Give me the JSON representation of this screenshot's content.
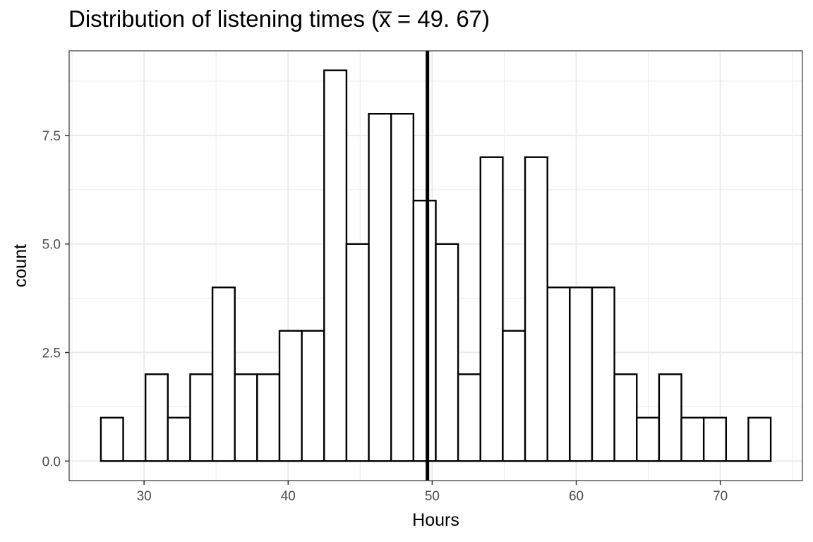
{
  "chart_data": {
    "type": "bar",
    "title": "Distribution of listening times (x̅ = 49. 67)",
    "xlabel": "Hours",
    "ylabel": "count",
    "xlim": [
      24.8,
      75.7
    ],
    "ylim": [
      -0.45,
      9.45
    ],
    "x_ticks": [
      "30",
      "40",
      "50",
      "60",
      "70"
    ],
    "y_ticks": [
      "0.0",
      "2.5",
      "5.0",
      "7.5"
    ],
    "bin_width": 1.55,
    "bin_start": 27.0,
    "counts": [
      1,
      0,
      2,
      1,
      2,
      4,
      2,
      2,
      3,
      3,
      9,
      5,
      8,
      8,
      6,
      5,
      2,
      7,
      3,
      7,
      4,
      4,
      4,
      2,
      1,
      2,
      1,
      1,
      0,
      1
    ],
    "mean": 49.67,
    "grid": true,
    "colors": {
      "bar_fill": "#ffffff",
      "bar_stroke": "#000000",
      "grid": "#ebebeb",
      "panel_border": "#333333",
      "mean_line": "#000000"
    }
  }
}
